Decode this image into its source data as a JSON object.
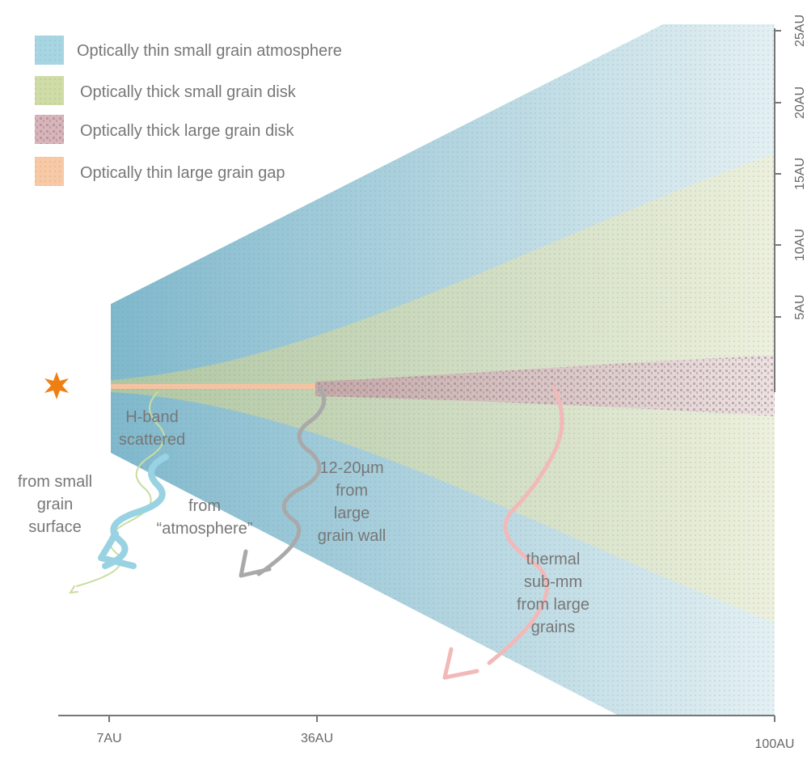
{
  "legend": {
    "items": [
      "Optically thin small grain atmosphere",
      "Optically thick small grain disk",
      "Optically thick large grain disk",
      "Optically thin large grain gap"
    ]
  },
  "x_axis": {
    "labels": [
      "7AU",
      "36AU",
      "100AU"
    ]
  },
  "y_axis": {
    "labels": [
      "25AU",
      "20AU",
      "15AU",
      "10AU",
      "5AU"
    ]
  },
  "annotations": {
    "h_band": [
      "H-band",
      "scattered"
    ],
    "small_grain": [
      "from small",
      "grain",
      "surface"
    ],
    "atmosphere": [
      "from",
      "“atmosphere”"
    ],
    "wall": [
      "12-20µm",
      "from",
      "large",
      "grain wall"
    ],
    "thermal": [
      "thermal",
      "sub-mm",
      "from large",
      "grains"
    ]
  }
}
